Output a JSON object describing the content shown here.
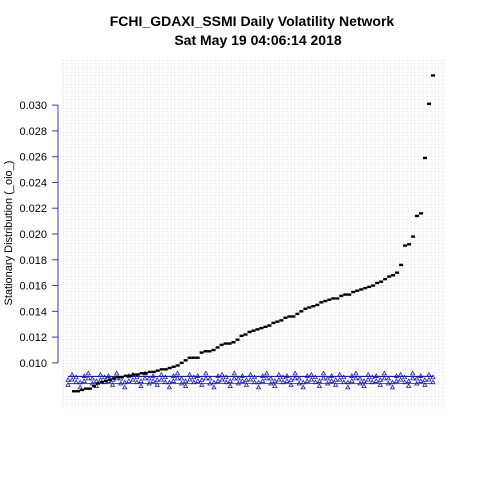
{
  "chart_data": {
    "type": "scatter",
    "title": "FCHI_GDAXI_SSMI  Daily Volatility Network",
    "subtitle": "Sat May 19 04:06:14 2018",
    "xlabel": "",
    "ylabel": "Stationary Distribution (_oio_)",
    "ylim": [
      0.0065,
      0.0335
    ],
    "yticks": [
      "0.010",
      "0.012",
      "0.014",
      "0.016",
      "0.018",
      "0.020",
      "0.022",
      "0.024",
      "0.026",
      "0.028",
      "0.030"
    ],
    "ytick_values": [
      0.01,
      0.012,
      0.014,
      0.016,
      0.018,
      0.02,
      0.022,
      0.024,
      0.026,
      0.028,
      0.03
    ],
    "grid": true,
    "series": [
      {
        "marker": "black-dash",
        "color": "#000000",
        "note": "sorted stationary distribution values (black markers)",
        "values": [
          0.0078,
          0.0078,
          0.0079,
          0.008,
          0.008,
          0.0082,
          0.0084,
          0.0085,
          0.0086,
          0.0087,
          0.0088,
          0.0089,
          0.0089,
          0.009,
          0.009,
          0.0091,
          0.0091,
          0.0092,
          0.0092,
          0.0093,
          0.0093,
          0.0094,
          0.0095,
          0.0095,
          0.0096,
          0.0097,
          0.0098,
          0.01,
          0.0102,
          0.0104,
          0.0104,
          0.0104,
          0.0108,
          0.0109,
          0.0109,
          0.011,
          0.0112,
          0.0114,
          0.0115,
          0.0115,
          0.0116,
          0.0118,
          0.0121,
          0.0122,
          0.0124,
          0.0125,
          0.0126,
          0.0127,
          0.0128,
          0.0129,
          0.0131,
          0.0132,
          0.0133,
          0.0135,
          0.0136,
          0.0136,
          0.0138,
          0.014,
          0.0142,
          0.0143,
          0.0144,
          0.0145,
          0.0147,
          0.0148,
          0.0149,
          0.015,
          0.015,
          0.0152,
          0.0153,
          0.0153,
          0.0155,
          0.0156,
          0.0157,
          0.0158,
          0.0159,
          0.016,
          0.0162,
          0.0163,
          0.0165,
          0.0167,
          0.0168,
          0.017,
          0.0176,
          0.0191,
          0.0192,
          0.0198,
          0.0214,
          0.0216,
          0.0259,
          0.0301,
          0.0323
        ]
      },
      {
        "marker": "blue-triangle",
        "color": "#1a1aa8",
        "note": "uniform reference band (blue markers)",
        "values": [
          0.0083,
          0.0087,
          0.0085,
          0.0081,
          0.0086,
          0.0088,
          0.0084,
          0.0082,
          0.0087,
          0.0085,
          0.0086,
          0.0083,
          0.0088,
          0.0084,
          0.0081,
          0.0086,
          0.0087,
          0.0085,
          0.0082,
          0.0088,
          0.0084,
          0.0086,
          0.0083,
          0.0087,
          0.0085,
          0.0081,
          0.0086,
          0.0088,
          0.0084,
          0.0082,
          0.0087,
          0.0085,
          0.0086,
          0.0083,
          0.0088,
          0.0084,
          0.0081,
          0.0086,
          0.0087,
          0.0085,
          0.0082,
          0.0088,
          0.0084,
          0.0086,
          0.0083,
          0.0087,
          0.0085,
          0.0081,
          0.0086,
          0.0088,
          0.0084,
          0.0082,
          0.0087,
          0.0085,
          0.0086,
          0.0083,
          0.0088,
          0.0084,
          0.0081,
          0.0086,
          0.0087,
          0.0085,
          0.0082,
          0.0088,
          0.0084,
          0.0086,
          0.0083,
          0.0087,
          0.0085,
          0.0081,
          0.0086,
          0.0088,
          0.0084,
          0.0082,
          0.0087,
          0.0085,
          0.0086,
          0.0083,
          0.0088,
          0.0084,
          0.0081,
          0.0086,
          0.0087,
          0.0085,
          0.0082,
          0.0088,
          0.0084,
          0.0086,
          0.0083,
          0.0087,
          0.0085
        ]
      }
    ]
  }
}
